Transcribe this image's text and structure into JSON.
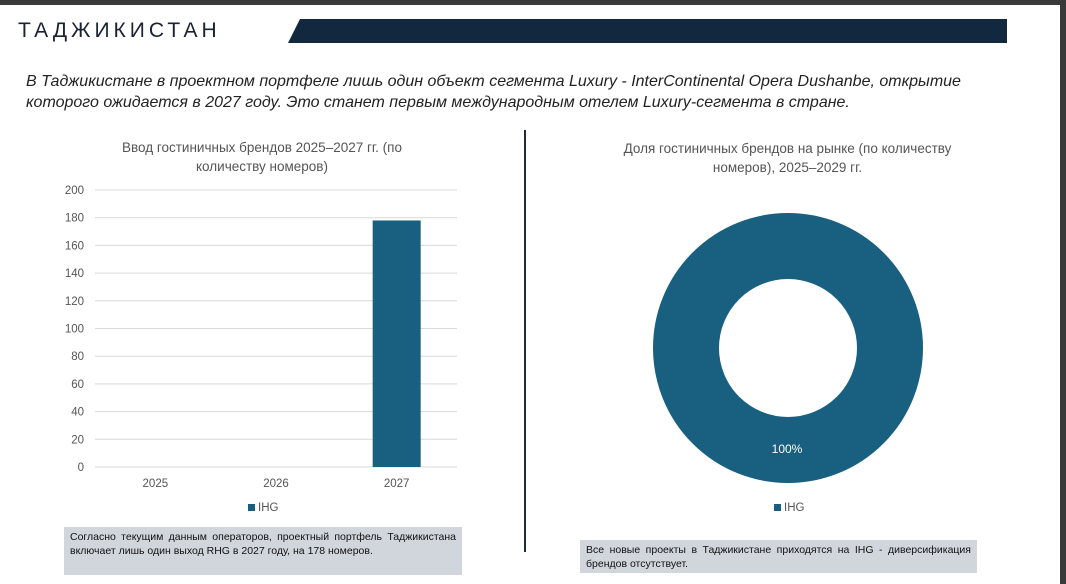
{
  "header": {
    "title": "ТАДЖИКИСТАН"
  },
  "subtitle": "В Таджикистане в проектном портфеле лишь один объект сегмента Luxury  - InterContinental Opera Dushanbe, открытие которого ожидается в 2027 году. Это станет первым международным отелем Luxury-сегмента в стране.",
  "left_note": "Согласно текущим данным операторов, проектный портфель Таджикистана включает лишь один выход RHG в 2027 году, на 178 номеров.",
  "right_note": "Все новые проекты в Таджикистане приходятся на IHG - диверсификация брендов отсутствует.",
  "colors": {
    "series": "#185f80",
    "banner": "#12283f"
  },
  "chart_data": [
    {
      "type": "bar",
      "title": "Ввод гостиничных брендов 2025–2027 гг. (по количеству номеров)",
      "categories": [
        "2025",
        "2026",
        "2027"
      ],
      "series": [
        {
          "name": "IHG",
          "values": [
            0,
            0,
            178
          ]
        }
      ],
      "ylim": [
        0,
        200
      ],
      "yticks": [
        "0",
        "20",
        "40",
        "60",
        "80",
        "100",
        "120",
        "140",
        "160",
        "180",
        "200"
      ],
      "legend": "bottom",
      "grid": true
    },
    {
      "type": "pie",
      "title": "Доля гостиничных брендов на рынке (по количеству номеров), 2025–2029 гг.",
      "labels": [
        "IHG"
      ],
      "values": [
        100
      ],
      "data_labels": [
        "100%"
      ],
      "donut": true,
      "legend": "bottom"
    }
  ]
}
